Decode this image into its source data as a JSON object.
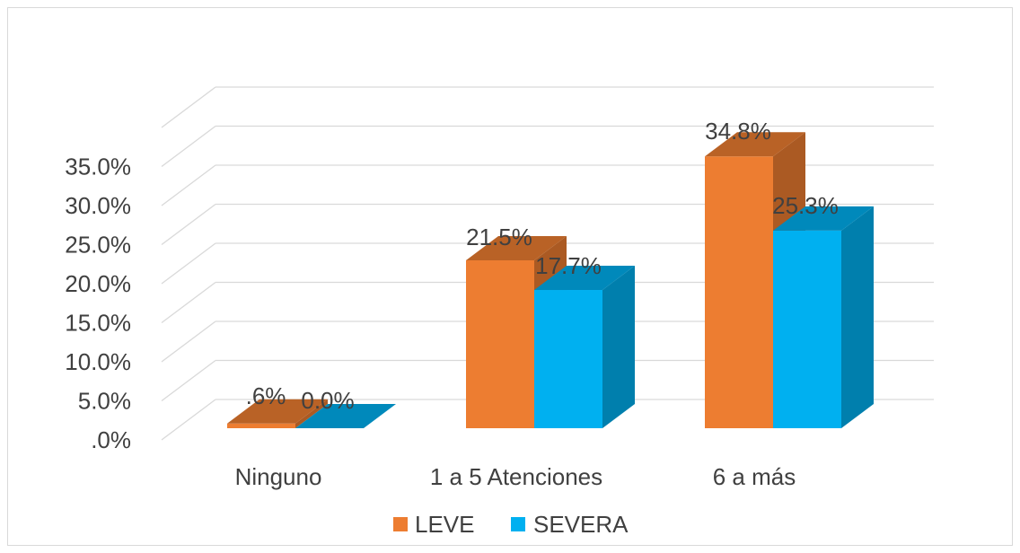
{
  "chart_data": {
    "type": "bar",
    "title": "",
    "xlabel": "",
    "ylabel": "",
    "ylim": [
      0,
      35
    ],
    "y_ticks": [
      ".0%",
      "5.0%",
      "10.0%",
      "15.0%",
      "20.0%",
      "25.0%",
      "30.0%",
      "35.0%"
    ],
    "categories": [
      "Ninguno",
      "1 a 5 Atenciones",
      "6 a más"
    ],
    "series": [
      {
        "name": "LEVE",
        "values": [
          0.6,
          21.5,
          34.8
        ],
        "labels": [
          ".6%",
          "21.5%",
          "34.8%"
        ],
        "color": "#ED7D31"
      },
      {
        "name": "SEVERA",
        "values": [
          0.0,
          17.7,
          25.3
        ],
        "labels": [
          "0.0%",
          "17.7%",
          "25.3%"
        ],
        "color": "#00B0F0"
      }
    ],
    "grid": true,
    "legend": "bottom",
    "style": "3d-clustered-column"
  }
}
